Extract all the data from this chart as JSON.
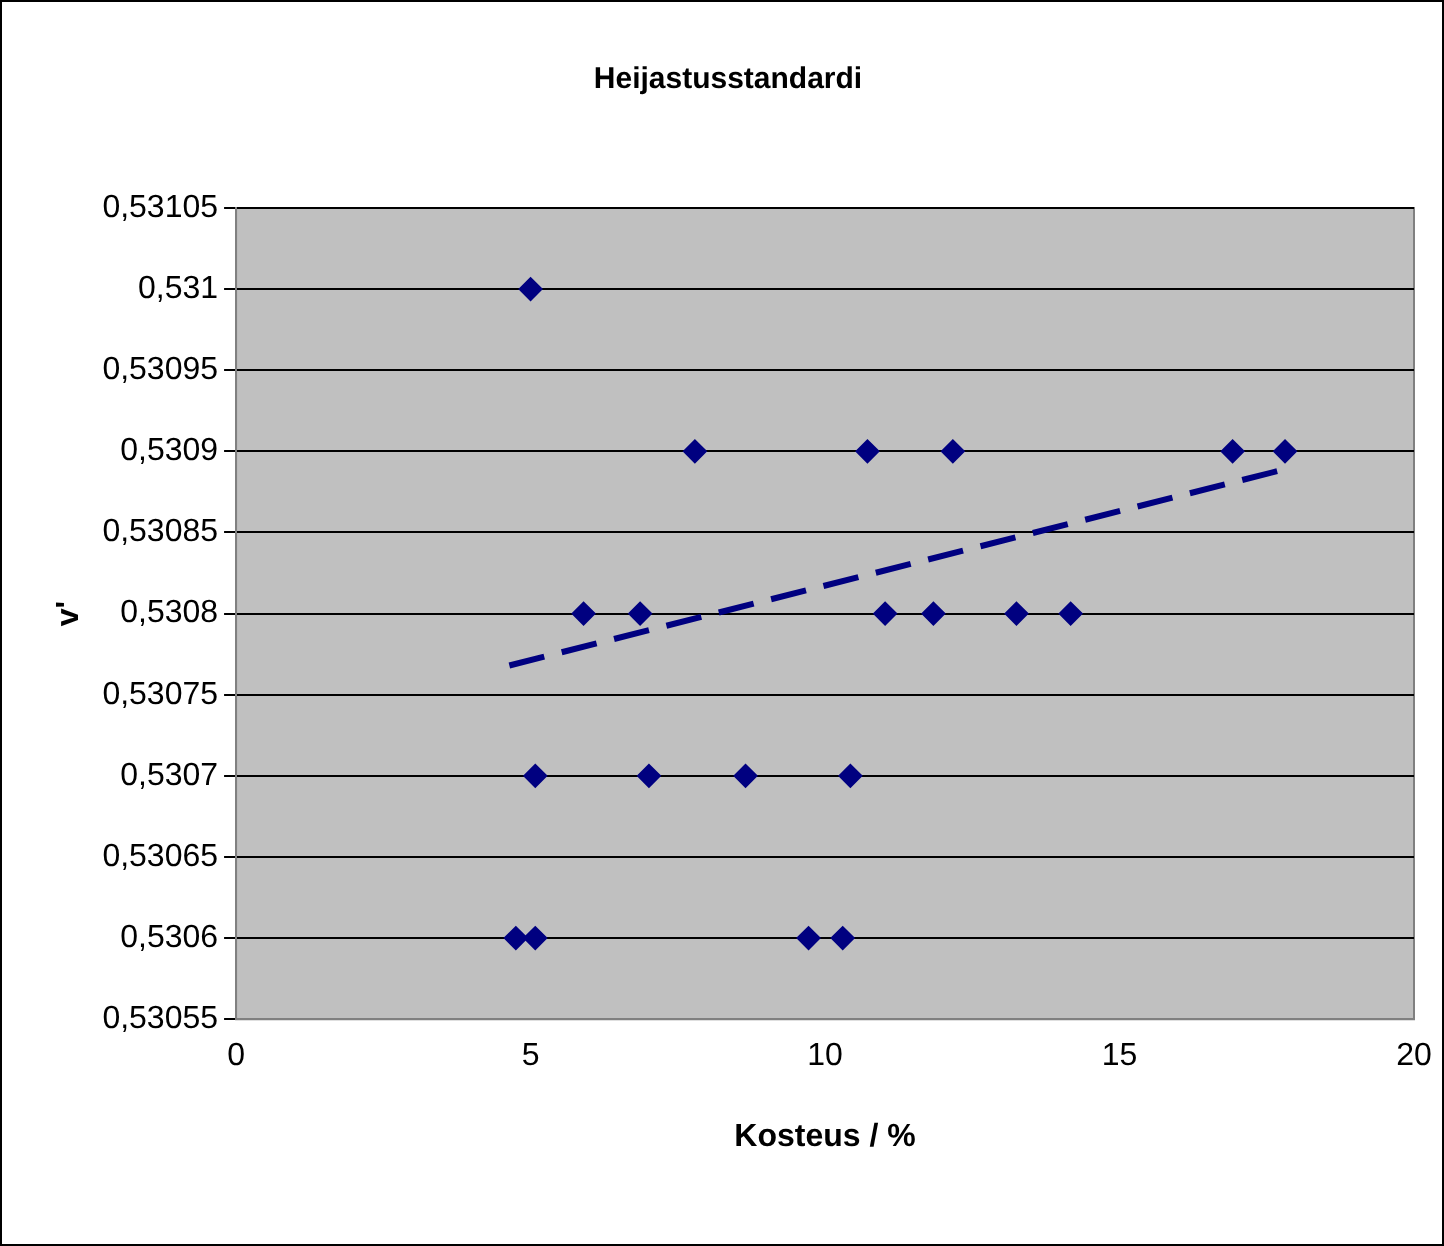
{
  "chart_data": {
    "type": "scatter",
    "title": "Heijastusstandardi",
    "xlabel": "Kosteus / %",
    "ylabel": "v'",
    "xlim": [
      0,
      20
    ],
    "xticks": [
      0,
      5,
      10,
      15,
      20
    ],
    "ylim": [
      0.53055,
      0.53105
    ],
    "yticks": [
      {
        "value": 0.53055,
        "label": "0,53055"
      },
      {
        "value": 0.5306,
        "label": "0,5306"
      },
      {
        "value": 0.53065,
        "label": "0,53065"
      },
      {
        "value": 0.5307,
        "label": "0,5307"
      },
      {
        "value": 0.53075,
        "label": "0,53075"
      },
      {
        "value": 0.5308,
        "label": "0,5308"
      },
      {
        "value": 0.53085,
        "label": "0,53085"
      },
      {
        "value": 0.5309,
        "label": "0,5309"
      },
      {
        "value": 0.53095,
        "label": "0,53095"
      },
      {
        "value": 0.531,
        "label": "0,531"
      },
      {
        "value": 0.53105,
        "label": "0,53105"
      }
    ],
    "grid": "y",
    "legend": false,
    "series": [
      {
        "color": "#000080",
        "marker": "diamond",
        "x": [
          4.75,
          5.08,
          5.0,
          5.08,
          5.9,
          6.86,
          7.01,
          7.79,
          8.65,
          9.72,
          10.3,
          10.43,
          10.72,
          11.02,
          11.84,
          12.17,
          13.25,
          14.17,
          16.92,
          17.81
        ],
        "values": [
          0.5306,
          0.5306,
          0.531,
          0.5307,
          0.5308,
          0.5308,
          0.5307,
          0.5309,
          0.5307,
          0.5306,
          0.5306,
          0.5307,
          0.5309,
          0.5308,
          0.5308,
          0.5309,
          0.5308,
          0.5308,
          0.5309,
          0.5309
        ]
      },
      {
        "type": "line",
        "color": "#000080",
        "line_style": "dashed",
        "marker": "none",
        "x": [
          4.64,
          17.81
        ],
        "values": [
          0.530768,
          0.530889
        ]
      }
    ]
  }
}
